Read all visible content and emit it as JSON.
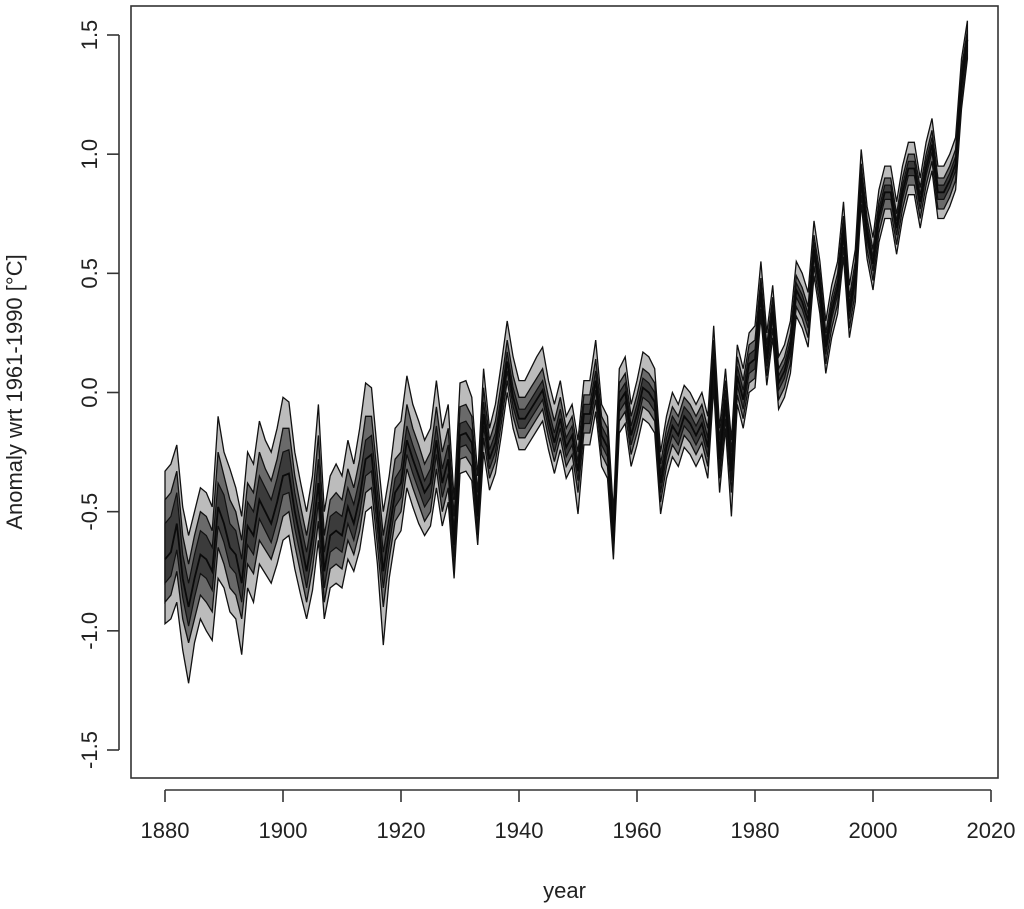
{
  "chart_data": {
    "type": "area",
    "xlabel": "year",
    "ylabel": "Anomaly wrt 1961-1990 [°C]",
    "xlim": [
      1875,
      2020
    ],
    "ylim": [
      -1.5,
      1.5
    ],
    "grid": false,
    "x_ticks": [
      {
        "value": 1880,
        "label": "1880"
      },
      {
        "value": 1900,
        "label": "1900"
      },
      {
        "value": 1920,
        "label": "1920"
      },
      {
        "value": 1940,
        "label": "1940"
      },
      {
        "value": 1960,
        "label": "1960"
      },
      {
        "value": 1980,
        "label": "1980"
      },
      {
        "value": 2000,
        "label": "2000"
      },
      {
        "value": 2020,
        "label": "2020"
      }
    ],
    "y_ticks": [
      {
        "value": -1.5,
        "label": "-1.5"
      },
      {
        "value": -1.0,
        "label": "-1.0"
      },
      {
        "value": -0.5,
        "label": "-0.5"
      },
      {
        "value": 0.0,
        "label": "0.0"
      },
      {
        "value": 0.5,
        "label": "0.5"
      },
      {
        "value": 1.0,
        "label": "1.0"
      },
      {
        "value": 1.5,
        "label": "1.5"
      }
    ],
    "x": [
      1880,
      1881,
      1882,
      1883,
      1884,
      1885,
      1886,
      1887,
      1888,
      1889,
      1890,
      1891,
      1892,
      1893,
      1894,
      1895,
      1896,
      1897,
      1898,
      1899,
      1900,
      1901,
      1902,
      1903,
      1904,
      1905,
      1906,
      1907,
      1908,
      1909,
      1910,
      1911,
      1912,
      1913,
      1914,
      1915,
      1916,
      1917,
      1918,
      1919,
      1920,
      1921,
      1922,
      1923,
      1924,
      1925,
      1926,
      1927,
      1928,
      1929,
      1930,
      1931,
      1932,
      1933,
      1934,
      1935,
      1936,
      1937,
      1938,
      1939,
      1940,
      1941,
      1942,
      1943,
      1944,
      1945,
      1946,
      1947,
      1948,
      1949,
      1950,
      1951,
      1952,
      1953,
      1954,
      1955,
      1956,
      1957,
      1958,
      1959,
      1960,
      1961,
      1962,
      1963,
      1964,
      1965,
      1966,
      1967,
      1968,
      1969,
      1970,
      1971,
      1972,
      1973,
      1974,
      1975,
      1976,
      1977,
      1978,
      1979,
      1980,
      1981,
      1982,
      1983,
      1984,
      1985,
      1986,
      1987,
      1988,
      1989,
      1990,
      1991,
      1992,
      1993,
      1994,
      1995,
      1996,
      1997,
      1998,
      1999,
      2000,
      2001,
      2002,
      2003,
      2004,
      2005,
      2006,
      2007,
      2008,
      2009,
      2010,
      2011,
      2012,
      2013,
      2014,
      2015,
      2016
    ],
    "series": [
      {
        "role": "upper-outer",
        "values": [
          -0.33,
          -0.3,
          -0.22,
          -0.48,
          -0.6,
          -0.5,
          -0.4,
          -0.42,
          -0.48,
          -0.1,
          -0.25,
          -0.32,
          -0.4,
          -0.52,
          -0.25,
          -0.3,
          -0.12,
          -0.2,
          -0.25,
          -0.15,
          -0.02,
          -0.04,
          -0.25,
          -0.38,
          -0.5,
          -0.35,
          -0.05,
          -0.5,
          -0.35,
          -0.3,
          -0.35,
          -0.2,
          -0.3,
          -0.15,
          0.04,
          0.02,
          -0.25,
          -0.5,
          -0.35,
          -0.15,
          -0.12,
          0.07,
          -0.05,
          -0.12,
          -0.2,
          -0.15,
          0.05,
          -0.15,
          -0.05,
          -0.45,
          0.04,
          0.05,
          -0.02,
          -0.35,
          0.1,
          -0.15,
          -0.05,
          0.12,
          0.3,
          0.15,
          0.05,
          0.05,
          0.1,
          0.15,
          0.19,
          0.05,
          -0.05,
          0.05,
          -0.1,
          -0.05,
          -0.2,
          0.05,
          0.05,
          0.22,
          -0.05,
          -0.1,
          -0.5,
          0.1,
          0.15,
          -0.05,
          0.05,
          0.17,
          0.15,
          0.1,
          -0.25,
          -0.1,
          0.0,
          -0.05,
          0.03,
          0.0,
          -0.05,
          0.0,
          -0.1,
          0.28,
          -0.15,
          0.1,
          -0.2,
          0.2,
          0.1,
          0.25,
          0.28,
          0.55,
          0.25,
          0.45,
          0.15,
          0.2,
          0.3,
          0.55,
          0.5,
          0.42,
          0.72,
          0.55,
          0.3,
          0.45,
          0.55,
          0.8,
          0.45,
          0.6,
          1.02,
          0.78,
          0.65,
          0.85,
          0.95,
          0.95,
          0.8,
          0.95,
          1.05,
          1.05,
          0.9,
          1.05,
          1.15,
          0.95,
          0.95,
          1.0,
          1.07,
          1.4,
          1.56
        ]
      },
      {
        "role": "upper-mid",
        "values": [
          -0.45,
          -0.42,
          -0.33,
          -0.6,
          -0.72,
          -0.6,
          -0.5,
          -0.52,
          -0.58,
          -0.25,
          -0.35,
          -0.45,
          -0.5,
          -0.62,
          -0.38,
          -0.42,
          -0.25,
          -0.32,
          -0.37,
          -0.28,
          -0.15,
          -0.15,
          -0.35,
          -0.48,
          -0.6,
          -0.45,
          -0.18,
          -0.6,
          -0.45,
          -0.42,
          -0.45,
          -0.32,
          -0.4,
          -0.28,
          -0.1,
          -0.1,
          -0.35,
          -0.6,
          -0.45,
          -0.28,
          -0.25,
          -0.05,
          -0.15,
          -0.22,
          -0.3,
          -0.25,
          -0.06,
          -0.25,
          -0.15,
          -0.52,
          -0.06,
          -0.05,
          -0.1,
          -0.42,
          0.02,
          -0.2,
          -0.12,
          0.04,
          0.22,
          0.07,
          -0.02,
          -0.02,
          0.02,
          0.06,
          0.1,
          -0.02,
          -0.12,
          -0.02,
          -0.15,
          -0.1,
          -0.25,
          -0.01,
          -0.01,
          0.14,
          -0.1,
          -0.15,
          -0.55,
          0.04,
          0.08,
          -0.1,
          -0.01,
          0.1,
          0.08,
          0.04,
          -0.3,
          -0.15,
          -0.06,
          -0.1,
          -0.02,
          -0.05,
          -0.1,
          -0.05,
          -0.15,
          0.22,
          -0.2,
          0.05,
          -0.25,
          0.15,
          0.05,
          0.2,
          0.22,
          0.48,
          0.2,
          0.4,
          0.1,
          0.15,
          0.25,
          0.49,
          0.44,
          0.36,
          0.66,
          0.5,
          0.25,
          0.4,
          0.5,
          0.74,
          0.4,
          0.55,
          0.96,
          0.73,
          0.6,
          0.8,
          0.9,
          0.9,
          0.75,
          0.9,
          1.0,
          1.0,
          0.86,
          1.0,
          1.1,
          0.9,
          0.9,
          0.95,
          1.02,
          1.36,
          1.52
        ]
      },
      {
        "role": "upper-inner",
        "values": [
          -0.55,
          -0.52,
          -0.42,
          -0.68,
          -0.8,
          -0.68,
          -0.58,
          -0.6,
          -0.65,
          -0.38,
          -0.43,
          -0.55,
          -0.58,
          -0.7,
          -0.46,
          -0.5,
          -0.35,
          -0.4,
          -0.45,
          -0.36,
          -0.25,
          -0.24,
          -0.42,
          -0.55,
          -0.67,
          -0.52,
          -0.28,
          -0.67,
          -0.52,
          -0.5,
          -0.52,
          -0.4,
          -0.47,
          -0.36,
          -0.2,
          -0.18,
          -0.42,
          -0.67,
          -0.52,
          -0.36,
          -0.32,
          -0.14,
          -0.22,
          -0.29,
          -0.37,
          -0.32,
          -0.14,
          -0.32,
          -0.22,
          -0.58,
          -0.13,
          -0.12,
          -0.16,
          -0.47,
          -0.04,
          -0.24,
          -0.17,
          -0.01,
          0.17,
          0.02,
          -0.07,
          -0.07,
          -0.03,
          0.01,
          0.05,
          -0.07,
          -0.17,
          -0.07,
          -0.19,
          -0.14,
          -0.29,
          -0.05,
          -0.05,
          0.09,
          -0.14,
          -0.19,
          -0.59,
          0.0,
          0.04,
          -0.14,
          -0.05,
          0.06,
          0.04,
          0.0,
          -0.34,
          -0.19,
          -0.1,
          -0.14,
          -0.06,
          -0.09,
          -0.14,
          -0.09,
          -0.19,
          0.18,
          -0.24,
          0.01,
          -0.29,
          0.11,
          0.01,
          0.16,
          0.18,
          0.45,
          0.17,
          0.37,
          0.07,
          0.12,
          0.22,
          0.46,
          0.41,
          0.33,
          0.63,
          0.47,
          0.22,
          0.37,
          0.47,
          0.71,
          0.37,
          0.52,
          0.93,
          0.7,
          0.57,
          0.77,
          0.87,
          0.87,
          0.72,
          0.87,
          0.97,
          0.97,
          0.83,
          0.97,
          1.07,
          0.87,
          0.87,
          0.92,
          0.99,
          1.33,
          1.5
        ]
      },
      {
        "role": "median",
        "values": [
          -0.7,
          -0.67,
          -0.55,
          -0.78,
          -0.9,
          -0.78,
          -0.68,
          -0.7,
          -0.75,
          -0.48,
          -0.55,
          -0.65,
          -0.68,
          -0.8,
          -0.56,
          -0.6,
          -0.45,
          -0.5,
          -0.55,
          -0.46,
          -0.35,
          -0.34,
          -0.5,
          -0.62,
          -0.75,
          -0.6,
          -0.38,
          -0.75,
          -0.6,
          -0.58,
          -0.6,
          -0.48,
          -0.55,
          -0.44,
          -0.28,
          -0.26,
          -0.5,
          -0.75,
          -0.58,
          -0.42,
          -0.38,
          -0.2,
          -0.28,
          -0.35,
          -0.42,
          -0.38,
          -0.2,
          -0.38,
          -0.28,
          -0.64,
          -0.18,
          -0.17,
          -0.21,
          -0.52,
          -0.09,
          -0.28,
          -0.21,
          -0.05,
          0.13,
          -0.02,
          -0.11,
          -0.11,
          -0.07,
          -0.03,
          0.01,
          -0.11,
          -0.21,
          -0.11,
          -0.23,
          -0.18,
          -0.33,
          -0.09,
          -0.09,
          0.05,
          -0.18,
          -0.23,
          -0.62,
          -0.04,
          0.0,
          -0.18,
          -0.09,
          0.02,
          0.0,
          -0.04,
          -0.38,
          -0.23,
          -0.14,
          -0.18,
          -0.1,
          -0.13,
          -0.18,
          -0.13,
          -0.23,
          0.14,
          -0.28,
          -0.03,
          -0.33,
          0.07,
          -0.03,
          0.12,
          0.14,
          0.42,
          0.14,
          0.34,
          0.04,
          0.09,
          0.19,
          0.43,
          0.38,
          0.3,
          0.6,
          0.44,
          0.19,
          0.34,
          0.44,
          0.68,
          0.34,
          0.49,
          0.9,
          0.67,
          0.54,
          0.74,
          0.84,
          0.84,
          0.69,
          0.84,
          0.94,
          0.94,
          0.8,
          0.94,
          1.04,
          0.84,
          0.84,
          0.89,
          0.96,
          1.3,
          1.48
        ]
      },
      {
        "role": "lower-inner",
        "values": [
          -0.8,
          -0.77,
          -0.66,
          -0.86,
          -0.98,
          -0.86,
          -0.76,
          -0.78,
          -0.83,
          -0.56,
          -0.63,
          -0.73,
          -0.76,
          -0.88,
          -0.64,
          -0.68,
          -0.53,
          -0.58,
          -0.63,
          -0.54,
          -0.43,
          -0.42,
          -0.57,
          -0.69,
          -0.82,
          -0.67,
          -0.46,
          -0.82,
          -0.67,
          -0.65,
          -0.67,
          -0.55,
          -0.62,
          -0.51,
          -0.35,
          -0.33,
          -0.57,
          -0.82,
          -0.64,
          -0.48,
          -0.44,
          -0.26,
          -0.34,
          -0.41,
          -0.48,
          -0.44,
          -0.26,
          -0.44,
          -0.34,
          -0.69,
          -0.23,
          -0.22,
          -0.26,
          -0.57,
          -0.14,
          -0.32,
          -0.25,
          -0.09,
          0.09,
          -0.06,
          -0.15,
          -0.15,
          -0.11,
          -0.07,
          -0.03,
          -0.15,
          -0.25,
          -0.15,
          -0.27,
          -0.22,
          -0.37,
          -0.13,
          -0.13,
          0.01,
          -0.22,
          -0.27,
          -0.65,
          -0.08,
          -0.04,
          -0.22,
          -0.13,
          -0.02,
          -0.04,
          -0.08,
          -0.42,
          -0.27,
          -0.18,
          -0.22,
          -0.14,
          -0.17,
          -0.22,
          -0.17,
          -0.27,
          0.1,
          -0.32,
          -0.07,
          -0.37,
          0.03,
          -0.07,
          0.08,
          0.1,
          0.39,
          0.11,
          0.31,
          0.01,
          0.06,
          0.16,
          0.4,
          0.35,
          0.27,
          0.57,
          0.41,
          0.16,
          0.31,
          0.41,
          0.65,
          0.31,
          0.46,
          0.87,
          0.64,
          0.51,
          0.71,
          0.81,
          0.81,
          0.66,
          0.81,
          0.91,
          0.91,
          0.77,
          0.91,
          1.01,
          0.81,
          0.81,
          0.86,
          0.93,
          1.27,
          1.46
        ]
      },
      {
        "role": "lower-mid",
        "values": [
          -0.88,
          -0.85,
          -0.75,
          -0.95,
          -1.05,
          -0.95,
          -0.85,
          -0.88,
          -0.92,
          -0.65,
          -0.72,
          -0.82,
          -0.85,
          -0.95,
          -0.72,
          -0.76,
          -0.62,
          -0.66,
          -0.7,
          -0.62,
          -0.52,
          -0.5,
          -0.64,
          -0.76,
          -0.88,
          -0.74,
          -0.54,
          -0.88,
          -0.74,
          -0.72,
          -0.74,
          -0.62,
          -0.68,
          -0.58,
          -0.42,
          -0.4,
          -0.64,
          -0.9,
          -0.7,
          -0.54,
          -0.5,
          -0.32,
          -0.4,
          -0.47,
          -0.54,
          -0.5,
          -0.32,
          -0.5,
          -0.4,
          -0.74,
          -0.28,
          -0.27,
          -0.31,
          -0.6,
          -0.19,
          -0.36,
          -0.29,
          -0.13,
          0.05,
          -0.1,
          -0.19,
          -0.19,
          -0.15,
          -0.11,
          -0.07,
          -0.19,
          -0.29,
          -0.19,
          -0.31,
          -0.26,
          -0.42,
          -0.17,
          -0.17,
          -0.03,
          -0.26,
          -0.31,
          -0.68,
          -0.12,
          -0.08,
          -0.26,
          -0.17,
          -0.06,
          -0.08,
          -0.12,
          -0.46,
          -0.31,
          -0.22,
          -0.26,
          -0.18,
          -0.21,
          -0.26,
          -0.21,
          -0.31,
          0.06,
          -0.36,
          -0.11,
          -0.42,
          -0.01,
          -0.11,
          0.04,
          0.06,
          0.35,
          0.07,
          0.27,
          -0.03,
          0.02,
          0.12,
          0.36,
          0.31,
          0.23,
          0.53,
          0.37,
          0.12,
          0.27,
          0.37,
          0.61,
          0.27,
          0.42,
          0.83,
          0.6,
          0.47,
          0.67,
          0.77,
          0.77,
          0.62,
          0.77,
          0.87,
          0.87,
          0.73,
          0.87,
          0.97,
          0.77,
          0.77,
          0.82,
          0.89,
          1.23,
          1.43
        ]
      },
      {
        "role": "lower-outer",
        "values": [
          -0.97,
          -0.95,
          -0.88,
          -1.08,
          -1.22,
          -1.05,
          -0.95,
          -1.0,
          -1.04,
          -0.78,
          -0.82,
          -0.92,
          -0.95,
          -1.1,
          -0.82,
          -0.88,
          -0.72,
          -0.76,
          -0.8,
          -0.72,
          -0.62,
          -0.6,
          -0.74,
          -0.85,
          -0.95,
          -0.83,
          -0.62,
          -0.95,
          -0.82,
          -0.8,
          -0.82,
          -0.7,
          -0.75,
          -0.66,
          -0.5,
          -0.48,
          -0.72,
          -1.06,
          -0.78,
          -0.62,
          -0.58,
          -0.4,
          -0.48,
          -0.55,
          -0.6,
          -0.56,
          -0.4,
          -0.56,
          -0.46,
          -0.78,
          -0.34,
          -0.33,
          -0.37,
          -0.64,
          -0.25,
          -0.41,
          -0.34,
          -0.18,
          0.0,
          -0.15,
          -0.24,
          -0.24,
          -0.2,
          -0.16,
          -0.12,
          -0.24,
          -0.34,
          -0.24,
          -0.36,
          -0.31,
          -0.51,
          -0.22,
          -0.22,
          -0.08,
          -0.31,
          -0.36,
          -0.7,
          -0.17,
          -0.13,
          -0.31,
          -0.22,
          -0.11,
          -0.13,
          -0.17,
          -0.51,
          -0.36,
          -0.27,
          -0.31,
          -0.23,
          -0.26,
          -0.31,
          -0.26,
          -0.36,
          0.02,
          -0.42,
          -0.15,
          -0.52,
          -0.05,
          -0.15,
          0.0,
          0.02,
          0.32,
          0.03,
          0.23,
          -0.07,
          -0.02,
          0.08,
          0.32,
          0.27,
          0.19,
          0.49,
          0.33,
          0.08,
          0.23,
          0.33,
          0.57,
          0.23,
          0.38,
          0.79,
          0.56,
          0.43,
          0.63,
          0.73,
          0.73,
          0.58,
          0.73,
          0.83,
          0.83,
          0.69,
          0.83,
          0.93,
          0.73,
          0.73,
          0.78,
          0.85,
          1.19,
          1.4
        ]
      }
    ]
  }
}
